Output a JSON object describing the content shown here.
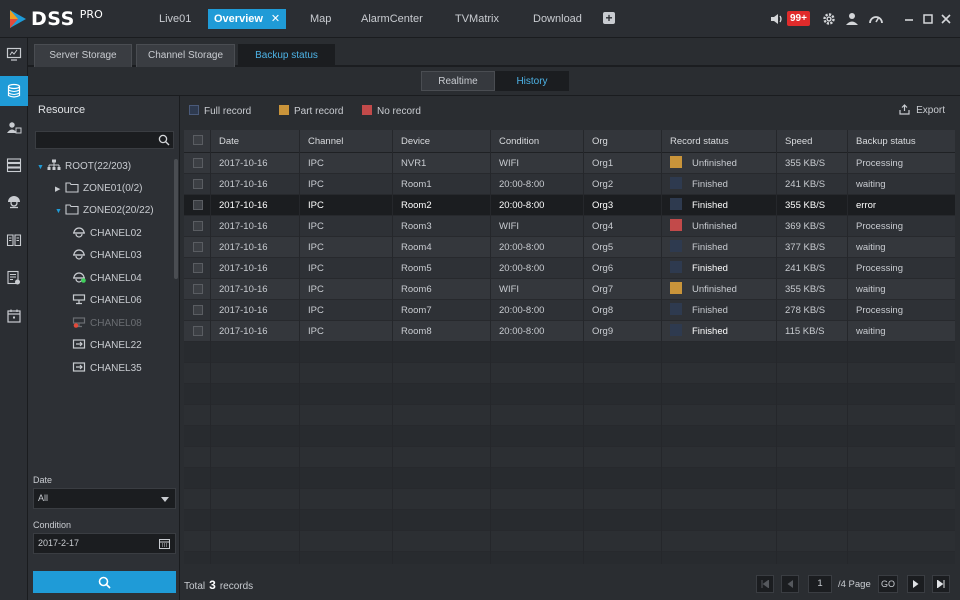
{
  "app": {
    "logo_text": "DSS",
    "logo_suffix": "PRO"
  },
  "nav": {
    "tabs": [
      {
        "label": "Live01"
      },
      {
        "label": "Overview",
        "close": "✕"
      },
      {
        "label": "Map"
      },
      {
        "label": "AlarmCenter"
      },
      {
        "label": "TVMatrix"
      },
      {
        "label": "Download"
      }
    ],
    "add": "+",
    "alarm_badge": "99+"
  },
  "rail": {
    "icons": [
      "monitor-icon",
      "storage-icon",
      "user-device-icon",
      "server-icon",
      "camera-icon",
      "book-icon",
      "log-icon",
      "calendar-icon"
    ]
  },
  "subtabs": [
    "Server Storage",
    "Channel Storage",
    "Backup status"
  ],
  "mode": {
    "realtime": "Realtime",
    "history": "History"
  },
  "resource": {
    "title": "Resource",
    "search_value": "",
    "tree": [
      {
        "label": "ROOT(22/203)"
      },
      {
        "label": "ZONE01(0/2)"
      },
      {
        "label": "ZONE02(20/22)"
      },
      {
        "label": "CHANEL02"
      },
      {
        "label": "CHANEL03"
      },
      {
        "label": "CHANEL04"
      },
      {
        "label": "CHANEL06"
      },
      {
        "label": "CHANEL08"
      },
      {
        "label": "CHANEL22"
      },
      {
        "label": "CHANEL35"
      }
    ],
    "date_label": "Date",
    "date_value": "All",
    "condition_label": "Condition",
    "condition_value": "2017-2-17"
  },
  "legend": {
    "full": "Full record",
    "part": "Part record",
    "none": "No record",
    "export": "Export",
    "colors": {
      "full": "#2e3a4f",
      "part": "#c9943a",
      "none": "#c24a4a"
    }
  },
  "table": {
    "columns": [
      "Date",
      "Channel",
      "Device",
      "Condition",
      "Org",
      "Record status",
      "Speed",
      "Backup status"
    ],
    "rows": [
      {
        "date": "2017-10-16",
        "channel": "IPC",
        "device": "NVR1",
        "condition": "WIFI",
        "org": "Org1",
        "color": "#c9943a",
        "record": "Unfinished",
        "speed": "355 KB/S",
        "backup": "Processing"
      },
      {
        "date": "2017-10-16",
        "channel": "IPC",
        "device": "Room1",
        "condition": "20:00-8:00",
        "org": "Org2",
        "color": "#2e3a4f",
        "record": "Finished",
        "speed": "241 KB/S",
        "backup": "waiting"
      },
      {
        "date": "2017-10-16",
        "channel": "IPC",
        "device": "Room2",
        "condition": "20:00-8:00",
        "org": "Org3",
        "color": "#2e3a4f",
        "record": "Finished",
        "speed": "355 KB/S",
        "backup": "error"
      },
      {
        "date": "2017-10-16",
        "channel": "IPC",
        "device": "Room3",
        "condition": "WIFI",
        "org": "Org4",
        "color": "#c24a4a",
        "record": "Unfinished",
        "speed": "369 KB/S",
        "backup": "Processing"
      },
      {
        "date": "2017-10-16",
        "channel": "IPC",
        "device": "Room4",
        "condition": "20:00-8:00",
        "org": "Org5",
        "color": "#2e3a4f",
        "record": "Finished",
        "speed": "377 KB/S",
        "backup": "waiting"
      },
      {
        "date": "2017-10-16",
        "channel": "IPC",
        "device": "Room5",
        "condition": "20:00-8:00",
        "org": "Org6",
        "color": "#2e3a4f",
        "record": "Finished",
        "speed": "241 KB/S",
        "backup": "Processing"
      },
      {
        "date": "2017-10-16",
        "channel": "IPC",
        "device": "Room6",
        "condition": "WIFI",
        "org": "Org7",
        "color": "#c9943a",
        "record": "Unfinished",
        "speed": "355 KB/S",
        "backup": "waiting"
      },
      {
        "date": "2017-10-16",
        "channel": "IPC",
        "device": "Room7",
        "condition": "20:00-8:00",
        "org": "Org8",
        "color": "#2e3a4f",
        "record": "Finished",
        "speed": "278 KB/S",
        "backup": "Processing"
      },
      {
        "date": "2017-10-16",
        "channel": "IPC",
        "device": "Room8",
        "condition": "20:00-8:00",
        "org": "Org9",
        "color": "#2e3a4f",
        "record": "Finished",
        "speed": "115 KB/S",
        "backup": "waiting"
      }
    ]
  },
  "footer": {
    "total_prefix": "Total",
    "total_count": "3",
    "total_suffix": "records",
    "page_value": "1",
    "page_total": "/4 Page",
    "go": "GO"
  }
}
